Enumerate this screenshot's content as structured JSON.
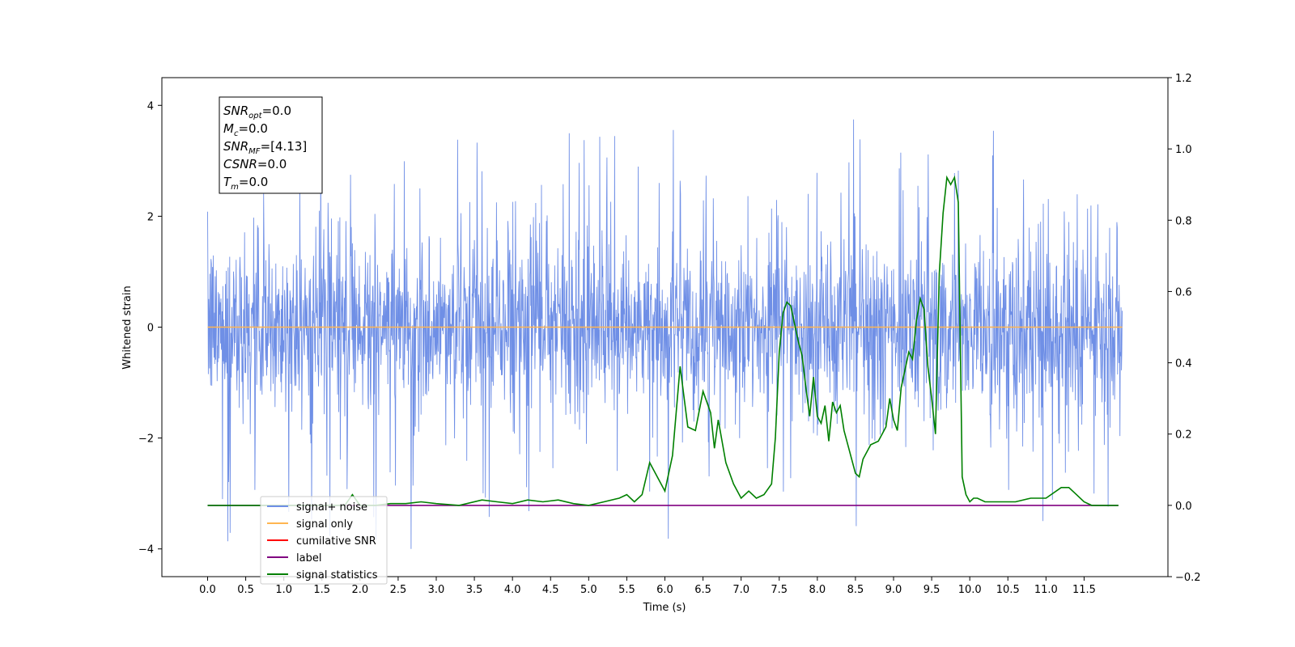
{
  "chart_data": {
    "type": "line",
    "title": "",
    "xlabel": "Time (s)",
    "ylabel": "Whitened strain",
    "xlim": [
      -0.6,
      12.6
    ],
    "ylim": [
      -4.5,
      4.5
    ],
    "y2lim": [
      -0.2,
      1.2
    ],
    "x_ticks": [
      0.0,
      0.5,
      1.0,
      1.5,
      2.0,
      2.5,
      3.0,
      3.5,
      4.0,
      4.5,
      5.0,
      5.5,
      6.0,
      6.5,
      7.0,
      7.5,
      8.0,
      8.5,
      9.0,
      9.5,
      10.0,
      10.5,
      11.0,
      11.5
    ],
    "x_tick_labels": [
      "0.0",
      "0.5",
      "1.0",
      "1.5",
      "2.0",
      "2.5",
      "3.0",
      "3.5",
      "4.0",
      "4.5",
      "5.0",
      "5.5",
      "6.0",
      "6.5",
      "7.0",
      "7.5",
      "8.0",
      "8.5",
      "9.0",
      "9.5",
      "10.0",
      "10.5",
      "11.0",
      "11.5"
    ],
    "y_ticks": [
      -4,
      -2,
      0,
      2,
      4
    ],
    "y_tick_labels": [
      "−4",
      "−2",
      "0",
      "2",
      "4"
    ],
    "y2_ticks": [
      -0.2,
      0.0,
      0.2,
      0.4,
      0.6,
      0.8,
      1.0,
      1.2
    ],
    "y2_tick_labels": [
      "−0.2",
      "0.0",
      "0.2",
      "0.4",
      "0.6",
      "0.8",
      "1.0",
      "1.2"
    ],
    "grid": false,
    "legend_position": "lower-left",
    "noise_series": {
      "name": "signal+ noise",
      "x_range": [
        0.0,
        12.0
      ],
      "envelope": 2.4,
      "peak": 4.0
    },
    "series": [
      {
        "name": "signal+ noise",
        "color": "#6f8fe6",
        "axis": "left"
      },
      {
        "name": "signal only",
        "color": "#ffb550",
        "axis": "left",
        "x": [
          0.0,
          12.0
        ],
        "y": [
          0.0,
          0.0
        ]
      },
      {
        "name": "cumilative SNR",
        "color": "#ff0000",
        "axis": "right",
        "x": [],
        "y": []
      },
      {
        "name": "label",
        "color": "#800080",
        "axis": "right",
        "x": [
          0.0,
          11.95
        ],
        "y": [
          0.0,
          0.0
        ]
      },
      {
        "name": "signal statistics",
        "color": "#008000",
        "axis": "right",
        "x": [
          0.0,
          1.0,
          1.5,
          1.8,
          1.9,
          2.0,
          2.2,
          2.4,
          2.6,
          2.8,
          3.0,
          3.3,
          3.6,
          3.8,
          4.0,
          4.2,
          4.4,
          4.6,
          4.8,
          5.0,
          5.2,
          5.4,
          5.5,
          5.6,
          5.7,
          5.8,
          5.9,
          6.0,
          6.1,
          6.2,
          6.3,
          6.4,
          6.5,
          6.6,
          6.65,
          6.7,
          6.8,
          6.9,
          7.0,
          7.1,
          7.2,
          7.3,
          7.4,
          7.45,
          7.5,
          7.55,
          7.6,
          7.65,
          7.7,
          7.75,
          7.8,
          7.85,
          7.9,
          7.95,
          8.0,
          8.05,
          8.1,
          8.15,
          8.2,
          8.25,
          8.3,
          8.35,
          8.4,
          8.45,
          8.5,
          8.55,
          8.6,
          8.7,
          8.8,
          8.9,
          8.95,
          9.0,
          9.05,
          9.1,
          9.15,
          9.2,
          9.25,
          9.3,
          9.35,
          9.4,
          9.45,
          9.5,
          9.55,
          9.6,
          9.65,
          9.7,
          9.75,
          9.8,
          9.85,
          9.9,
          9.95,
          10.0,
          10.05,
          10.1,
          10.2,
          10.3,
          10.4,
          10.6,
          10.8,
          11.0,
          11.2,
          11.3,
          11.4,
          11.5,
          11.6,
          11.7,
          11.8,
          11.9,
          11.95
        ],
        "y": [
          0.0,
          0.0,
          0.0,
          0.0,
          0.03,
          0.0,
          0.0,
          0.005,
          0.005,
          0.01,
          0.005,
          0.0,
          0.015,
          0.01,
          0.005,
          0.015,
          0.01,
          0.015,
          0.005,
          0.0,
          0.01,
          0.02,
          0.03,
          0.01,
          0.03,
          0.12,
          0.08,
          0.04,
          0.14,
          0.39,
          0.22,
          0.21,
          0.32,
          0.26,
          0.16,
          0.24,
          0.12,
          0.06,
          0.02,
          0.04,
          0.02,
          0.03,
          0.06,
          0.19,
          0.43,
          0.54,
          0.57,
          0.56,
          0.51,
          0.46,
          0.42,
          0.33,
          0.25,
          0.36,
          0.25,
          0.23,
          0.28,
          0.18,
          0.29,
          0.26,
          0.28,
          0.21,
          0.17,
          0.13,
          0.09,
          0.08,
          0.13,
          0.17,
          0.18,
          0.22,
          0.3,
          0.24,
          0.21,
          0.33,
          0.38,
          0.43,
          0.41,
          0.52,
          0.58,
          0.55,
          0.39,
          0.3,
          0.2,
          0.65,
          0.82,
          0.92,
          0.9,
          0.92,
          0.85,
          0.08,
          0.03,
          0.01,
          0.02,
          0.02,
          0.01,
          0.01,
          0.01,
          0.01,
          0.02,
          0.02,
          0.05,
          0.05,
          0.03,
          0.01,
          0.0,
          0.0,
          0.0,
          0.0,
          0.0
        ]
      }
    ]
  },
  "stats_box": {
    "lines": [
      {
        "main": "SNR",
        "sub": "opt",
        "value": "=0.0"
      },
      {
        "main": "M",
        "sub": "c",
        "value": "=0.0"
      },
      {
        "main": "SNR",
        "sub": "MF",
        "value": "=[4.13]"
      },
      {
        "main": "CSNR",
        "sub": "",
        "value": "=0.0"
      },
      {
        "main": "T",
        "sub": "m",
        "value": "=0.0"
      }
    ]
  },
  "legend": {
    "entries": [
      {
        "label": "signal+ noise",
        "color": "#6f8fe6"
      },
      {
        "label": "signal only",
        "color": "#ffb550"
      },
      {
        "label": "cumilative SNR",
        "color": "#ff0000"
      },
      {
        "label": "label",
        "color": "#800080"
      },
      {
        "label": "signal statistics",
        "color": "#008000"
      }
    ]
  }
}
